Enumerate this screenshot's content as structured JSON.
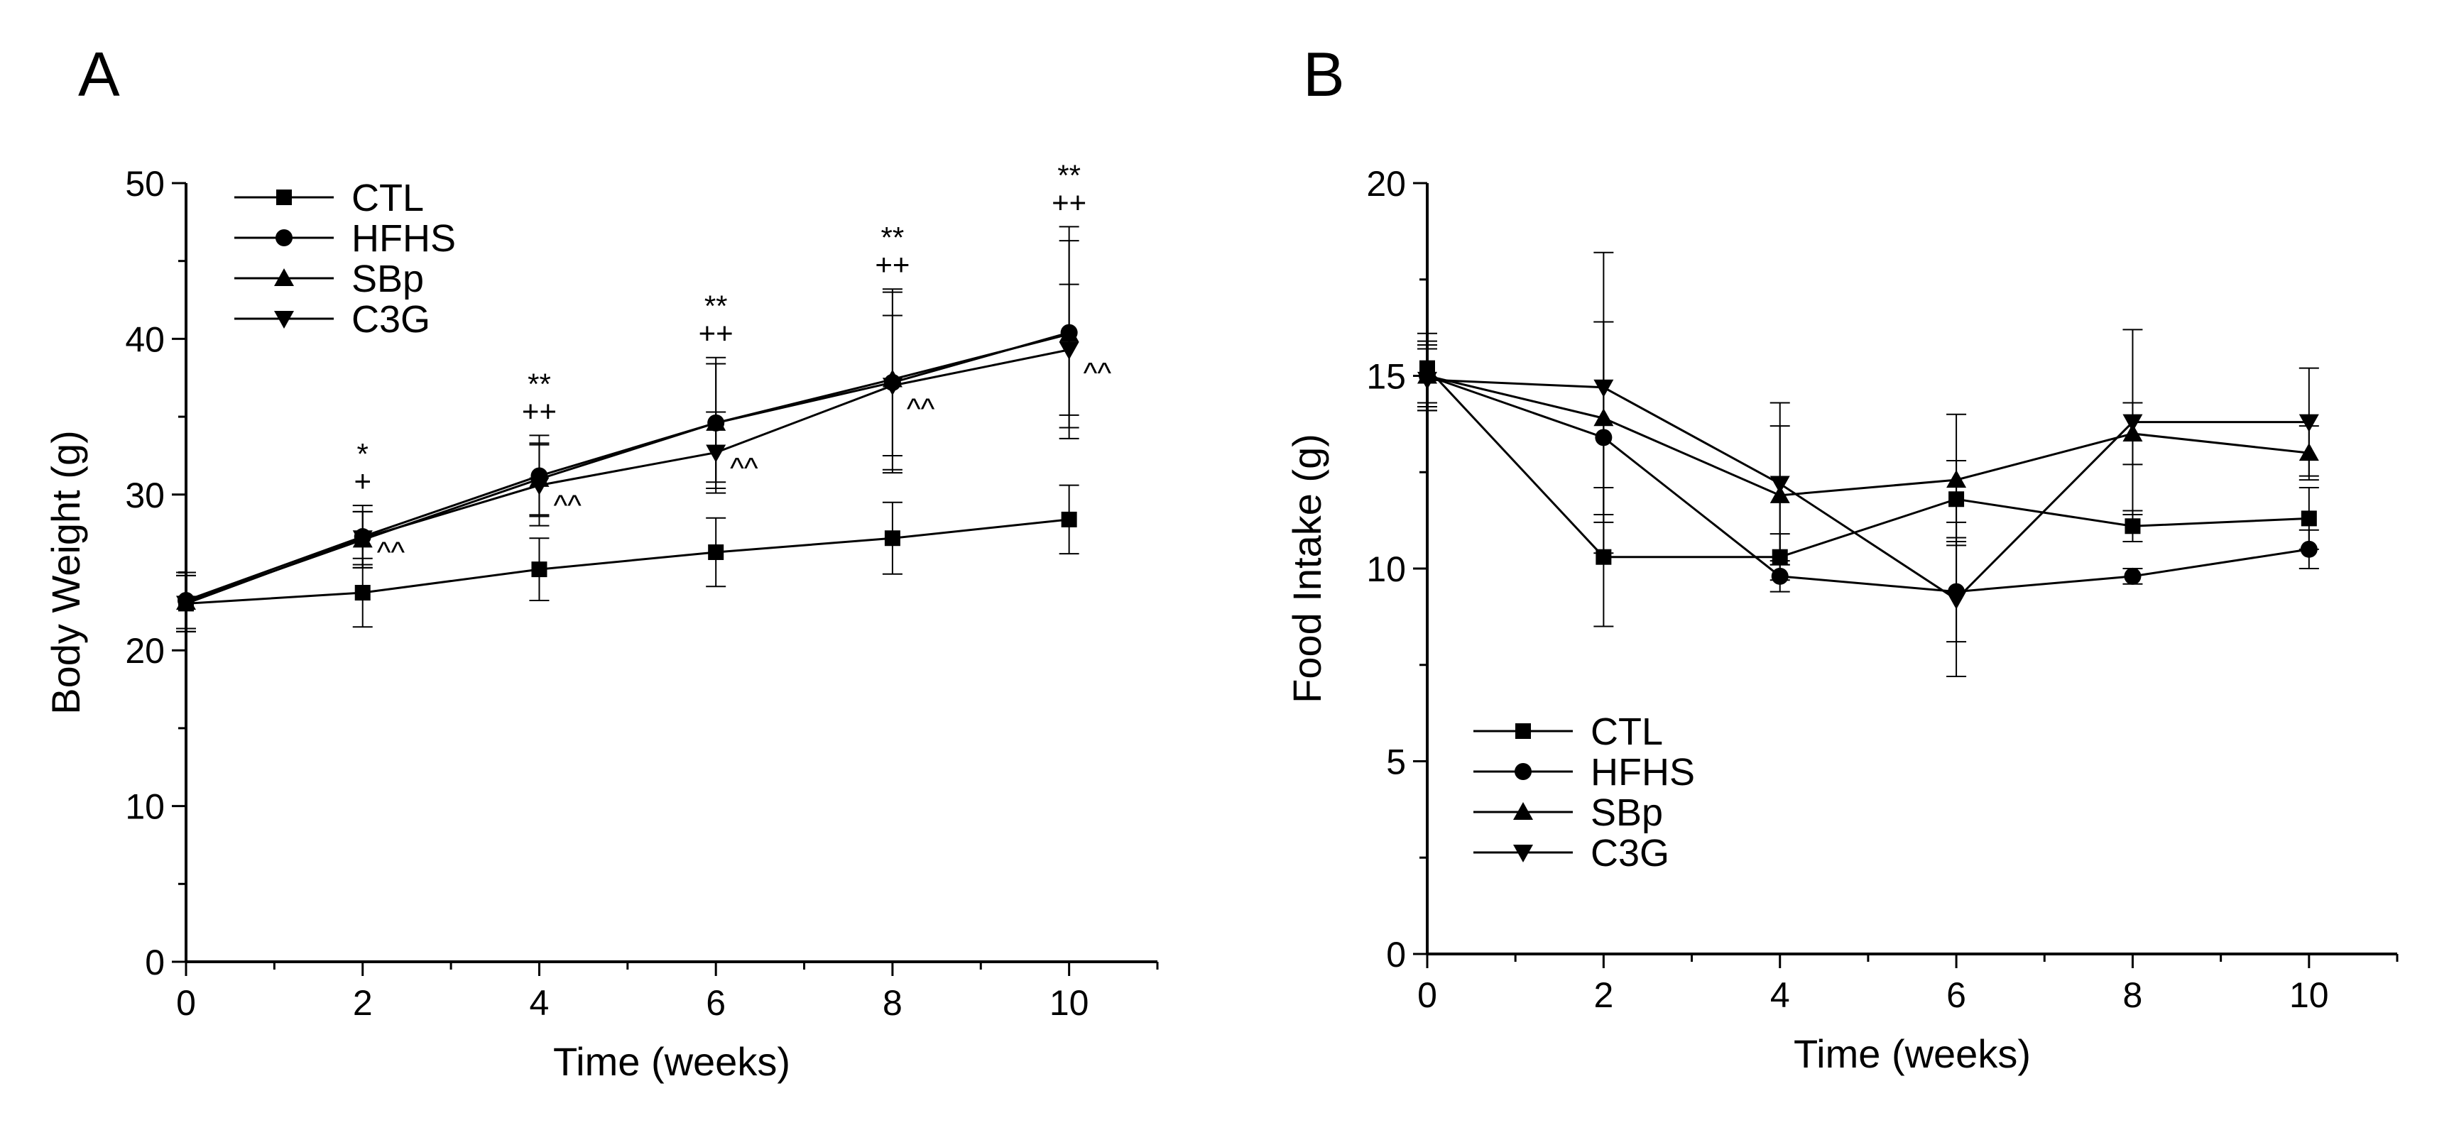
{
  "chart_data": [
    {
      "type": "line",
      "panel_label": "A",
      "xlabel": "Time (weeks)",
      "ylabel": "Body Weight (g)",
      "xlim": [
        0,
        11
      ],
      "ylim": [
        0,
        50
      ],
      "xticks": [
        0,
        2,
        4,
        6,
        8,
        10
      ],
      "yticks": [
        0,
        10,
        20,
        30,
        40,
        50
      ],
      "legend_position": "top-left",
      "x": [
        0,
        2,
        4,
        6,
        8,
        10
      ],
      "series": [
        {
          "name": "CTL",
          "marker": "square",
          "values": [
            23.0,
            23.7,
            25.2,
            26.3,
            27.2,
            28.4
          ],
          "errors": [
            1.8,
            2.2,
            2.0,
            2.2,
            2.3,
            2.2
          ]
        },
        {
          "name": "HFHS",
          "marker": "circle",
          "values": [
            23.2,
            27.3,
            31.2,
            34.6,
            37.2,
            40.4
          ],
          "errors": [
            1.8,
            2.0,
            2.6,
            4.2,
            5.8,
            6.8
          ]
        },
        {
          "name": "SBp",
          "marker": "triangle-up",
          "values": [
            23.1,
            27.1,
            31.0,
            34.6,
            37.4,
            40.3
          ],
          "errors": [
            1.9,
            1.8,
            2.3,
            3.8,
            5.8,
            6.0
          ]
        },
        {
          "name": "C3G",
          "marker": "triangle-down",
          "values": [
            23.0,
            27.2,
            30.6,
            32.7,
            37.0,
            39.3
          ],
          "errors": [
            1.8,
            1.7,
            2.6,
            2.6,
            4.5,
            4.2
          ]
        }
      ],
      "annotations": [
        {
          "x": 2,
          "top": "*",
          "bottom": "+"
        },
        {
          "x": 4,
          "top": "**",
          "bottom": "++"
        },
        {
          "x": 6,
          "top": "**",
          "bottom": "++"
        },
        {
          "x": 8,
          "top": "**",
          "bottom": "++"
        },
        {
          "x": 10,
          "top": "**",
          "bottom": "++"
        }
      ],
      "caret_annotations": [
        {
          "x": 2,
          "y": 26.3,
          "text": "^^"
        },
        {
          "x": 4,
          "y": 29.3,
          "text": "^^"
        },
        {
          "x": 6,
          "y": 31.7,
          "text": "^^"
        },
        {
          "x": 8,
          "y": 35.5,
          "text": "^^"
        },
        {
          "x": 10,
          "y": 37.8,
          "text": "^^"
        }
      ]
    },
    {
      "type": "line",
      "panel_label": "B",
      "xlabel": "Time (weeks)",
      "ylabel": "Food Intake (g)",
      "xlim": [
        0,
        11
      ],
      "ylim": [
        0,
        20
      ],
      "xticks": [
        0,
        2,
        4,
        6,
        8,
        10
      ],
      "yticks": [
        0,
        5,
        10,
        15,
        20
      ],
      "legend_position": "bottom-left",
      "x": [
        0,
        2,
        4,
        6,
        8,
        10
      ],
      "series": [
        {
          "name": "CTL",
          "marker": "square",
          "values": [
            15.2,
            10.3,
            10.3,
            11.8,
            11.1,
            11.3
          ],
          "errors": [
            0.9,
            1.8,
            0.6,
            1.0,
            0.4,
            0.8
          ]
        },
        {
          "name": "HFHS",
          "marker": "circle",
          "values": [
            15.0,
            13.4,
            9.8,
            9.4,
            9.8,
            10.5
          ],
          "errors": [
            0.9,
            3.0,
            0.4,
            1.3,
            0.2,
            0.5
          ]
        },
        {
          "name": "SBp",
          "marker": "triangle-up",
          "values": [
            15.0,
            13.9,
            11.9,
            12.3,
            13.5,
            13.0
          ],
          "errors": [
            0.8,
            2.5,
            1.8,
            1.7,
            0.8,
            0.7
          ]
        },
        {
          "name": "C3G",
          "marker": "triangle-down",
          "values": [
            14.9,
            14.7,
            12.2,
            9.2,
            13.8,
            13.8
          ],
          "errors": [
            0.8,
            3.5,
            2.1,
            2.0,
            2.4,
            1.4
          ]
        }
      ]
    }
  ]
}
